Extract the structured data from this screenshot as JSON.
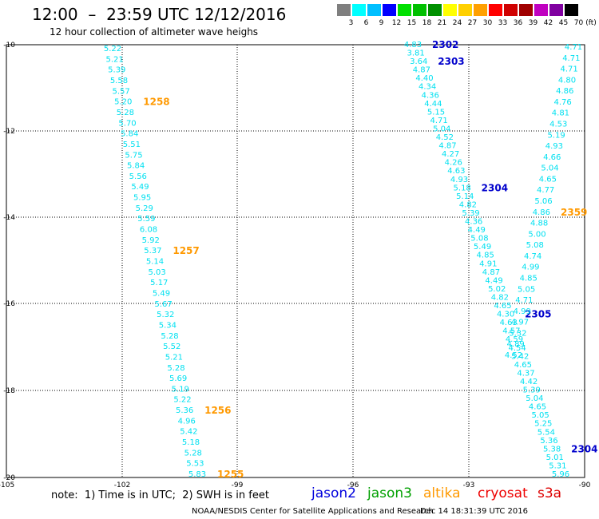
{
  "header": {
    "title": "12:00  –  23:59 UTC 12/12/2016",
    "subtitle": "12 hour collection of altimeter wave heighs"
  },
  "color_scale": {
    "labels": [
      "3",
      "6",
      "9",
      "12",
      "15",
      "18",
      "21",
      "24",
      "27",
      "30",
      "33",
      "36",
      "39",
      "42",
      "45",
      "70"
    ],
    "unit": "(ft)",
    "colors": [
      "#7f7f7f",
      "#00ffff",
      "#00bfff",
      "#0000ff",
      "#00e000",
      "#00c000",
      "#009000",
      "#ffff00",
      "#ffd000",
      "#ffa000",
      "#ff0000",
      "#d00000",
      "#a00000",
      "#c000c0",
      "#8000a0",
      "#000000"
    ]
  },
  "map": {
    "lat_labels": [
      "-10",
      "-12",
      "-14",
      "-16",
      "-18",
      "-20"
    ],
    "lon_labels": [
      "-105",
      "-102",
      "-99",
      "-96",
      "-93",
      "-90"
    ],
    "track_color": "#00e0f0",
    "time_color_orange": "#ff9900",
    "time_color_blue": "#0000cc",
    "tracks": [
      {
        "name": "track-a",
        "values": [
          "5.22",
          "5.21",
          "5.39",
          "5.58",
          "5.57",
          "5.20",
          "5.28",
          "5.70",
          "5.84",
          "5.51",
          "5.75",
          "5.84",
          "5.56",
          "5.49",
          "5.95",
          "5.29",
          "5.59",
          "6.08",
          "5.92",
          "5.37",
          "5.14",
          "5.03",
          "5.17",
          "5.49",
          "5.67",
          "5.32",
          "5.34",
          "5.28",
          "5.52",
          "5.21",
          "5.28",
          "5.69",
          "5.19",
          "5.22",
          "5.36",
          "4.96",
          "5.42",
          "5.18",
          "5.28",
          "5.53",
          "5.83"
        ],
        "times": [
          {
            "label": "1258",
            "index": 5
          },
          {
            "label": "1257",
            "index": 19
          },
          {
            "label": "1256",
            "index": 34
          },
          {
            "label": "1255",
            "index": 40
          }
        ]
      },
      {
        "name": "track-b",
        "values": [
          "4.83",
          "3.81",
          "3.64",
          "4.87",
          "4.40",
          "4.34",
          "4.36",
          "4.44",
          "5.15",
          "4.71",
          "5.04",
          "4.52",
          "4.87",
          "4.27",
          "4.26",
          "4.63",
          "4.93",
          "5.18",
          "5.14",
          "4.82",
          "5.39",
          "4.36",
          "4.49",
          "5.08",
          "5.49",
          "4.85",
          "4.91",
          "4.87",
          "4.49",
          "5.02",
          "4.82",
          "4.65",
          "4.30",
          "4.63",
          "4.57",
          "4.59",
          "4.54",
          "5.42",
          "4.65",
          "4.37",
          "4.42",
          "5.39",
          "5.04",
          "4.65",
          "5.05",
          "5.25",
          "5.54",
          "5.36",
          "5.38",
          "5.01",
          "5.31",
          "5.96"
        ],
        "times": [
          {
            "label": "2302",
            "index": 0
          },
          {
            "label": "2303",
            "index": 2
          },
          {
            "label": "2304",
            "index": 17
          },
          {
            "label": "2305",
            "index": 32
          },
          {
            "label": "2304",
            "index": 48
          }
        ]
      },
      {
        "name": "track-c",
        "values": [
          "4.71",
          "4.71",
          "4.71",
          "4.80",
          "4.86",
          "4.76",
          "4.81",
          "4.53",
          "5.19",
          "4.93",
          "4.66",
          "5.04",
          "4.65",
          "4.77",
          "5.06",
          "4.86",
          "4.88",
          "5.00",
          "5.08",
          "4.74",
          "4.99",
          "4.85",
          "5.05",
          "4.71",
          "4.99",
          "4.97",
          "5.32",
          "4.89",
          "4.52"
        ],
        "times": [
          {
            "label": "2359",
            "index": 15
          }
        ]
      }
    ]
  },
  "footer": {
    "note": "note:  1) Time is in UTC;  2) SWH is in feet",
    "legend": [
      {
        "label": "jason2",
        "color": "#0000dd"
      },
      {
        "label": "jason3",
        "color": "#00a000"
      },
      {
        "label": "altika",
        "color": "#ff9900"
      },
      {
        "label": "cryosat",
        "color": "#ee0000"
      },
      {
        "label": "s3a",
        "color": "#dd0000"
      }
    ],
    "credit": "NOAA/NESDIS Center for Satellite Applications and Research",
    "timestamp": "Dec 14 18:31:39 UTC 2016"
  }
}
